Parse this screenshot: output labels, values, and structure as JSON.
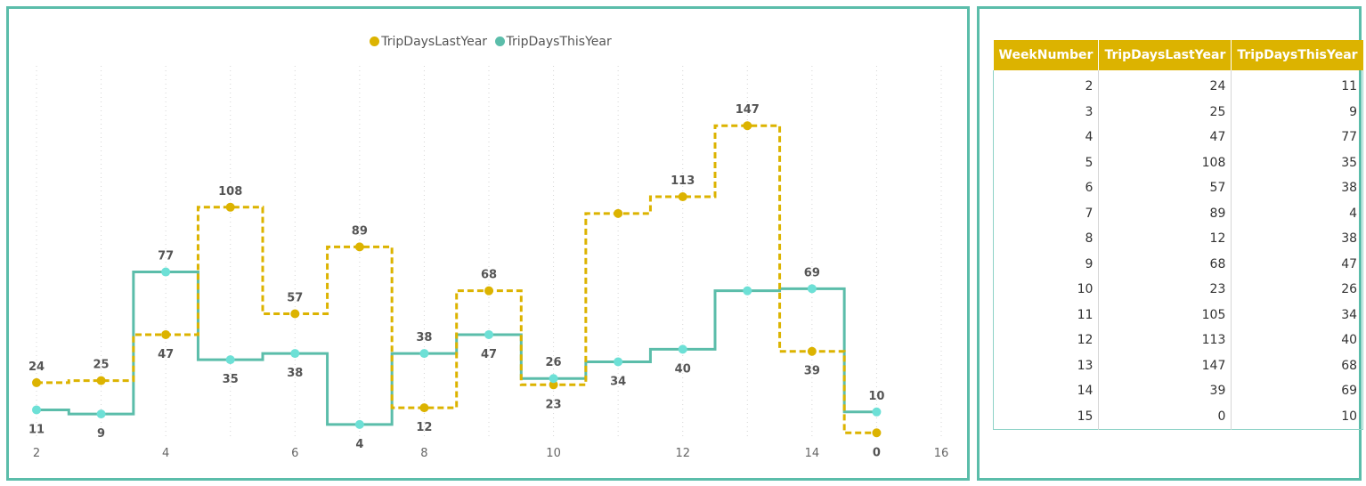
{
  "chart_data": {
    "type": "line",
    "line_style": "step",
    "x": [
      2,
      3,
      4,
      5,
      6,
      7,
      8,
      9,
      10,
      11,
      12,
      13,
      14,
      15
    ],
    "x_ticks": [
      2,
      4,
      6,
      8,
      10,
      12,
      14,
      16
    ],
    "xlim": [
      2,
      16
    ],
    "ylim": [
      -5,
      165
    ],
    "grid": "vertical-dotted",
    "legend_position": "top-center",
    "series": [
      {
        "name": "TripDaysLastYear",
        "color": "#dcb300",
        "dash": true,
        "values": [
          24,
          25,
          47,
          108,
          57,
          89,
          12,
          68,
          23,
          105,
          113,
          147,
          39,
          0
        ]
      },
      {
        "name": "TripDaysThisYear",
        "color": "#5bbdaa",
        "dash": false,
        "values": [
          11,
          9,
          77,
          35,
          38,
          4,
          38,
          47,
          26,
          34,
          40,
          68,
          69,
          10
        ]
      }
    ],
    "data_labels": [
      {
        "x": 2,
        "text": "11"
      },
      {
        "x": 2,
        "text": "24"
      },
      {
        "x": 3,
        "text": "25"
      },
      {
        "x": 3,
        "text": "9"
      },
      {
        "x": 4,
        "text": "77"
      },
      {
        "x": 4,
        "text": "47"
      },
      {
        "x": 5,
        "text": "108"
      },
      {
        "x": 5,
        "text": "35"
      },
      {
        "x": 6,
        "text": "38"
      },
      {
        "x": 6,
        "text": "57"
      },
      {
        "x": 7,
        "text": "89"
      },
      {
        "x": 7,
        "text": "4"
      },
      {
        "x": 8,
        "text": "38"
      },
      {
        "x": 8,
        "text": "12"
      },
      {
        "x": 9,
        "text": "47"
      },
      {
        "x": 9,
        "text": "68"
      },
      {
        "x": 10,
        "text": "26"
      },
      {
        "x": 10,
        "text": "23"
      },
      {
        "x": 11,
        "text": "34"
      },
      {
        "x": 12,
        "text": "113"
      },
      {
        "x": 12,
        "text": "40"
      },
      {
        "x": 13,
        "text": "147"
      },
      {
        "x": 14,
        "text": "69"
      },
      {
        "x": 14,
        "text": "39"
      },
      {
        "x": 15,
        "text": "10"
      },
      {
        "x": 15,
        "text": "0"
      }
    ]
  },
  "table": {
    "columns": [
      "WeekNumber",
      "TripDaysLastYear",
      "TripDaysThisYear"
    ],
    "rows": [
      [
        "2",
        "24",
        "11"
      ],
      [
        "3",
        "25",
        "9"
      ],
      [
        "4",
        "47",
        "77"
      ],
      [
        "5",
        "108",
        "35"
      ],
      [
        "6",
        "57",
        "38"
      ],
      [
        "7",
        "89",
        "4"
      ],
      [
        "8",
        "12",
        "38"
      ],
      [
        "9",
        "68",
        "47"
      ],
      [
        "10",
        "23",
        "26"
      ],
      [
        "11",
        "105",
        "34"
      ],
      [
        "12",
        "113",
        "40"
      ],
      [
        "13",
        "147",
        "68"
      ],
      [
        "14",
        "39",
        "69"
      ],
      [
        "15",
        "0",
        "10"
      ]
    ]
  }
}
